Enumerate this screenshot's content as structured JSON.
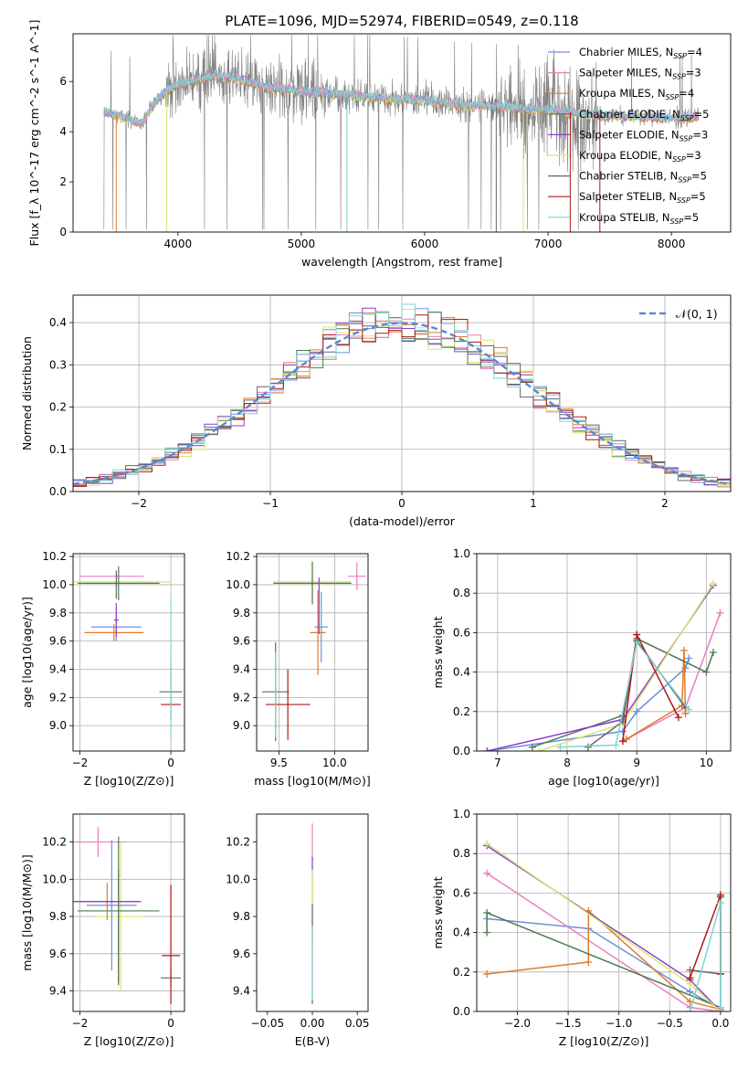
{
  "figure_title": "PLATE=1096, MJD=52974, FIBERID=0549, z=0.118",
  "colors": {
    "blue": "#6b8fdc",
    "pink": "#e87fbf",
    "orange": "#e07b2a",
    "darkgreen": "#4f7a4f",
    "purple": "#8e3cc9",
    "lime": "#d4ec6a",
    "gray": "#666666",
    "red": "#b01818",
    "cyan": "#7fd4d4",
    "fitline": "#5a86d8"
  },
  "chart_data": [
    {
      "id": "spectrum",
      "type": "line",
      "xlabel": "wavelength [Angstrom, rest frame]",
      "ylabel": "Flux [f_λ 10^-17 erg cm^-2 s^-1 A^-1]",
      "xlim": [
        3150,
        8480
      ],
      "ylim": [
        0,
        7.9
      ],
      "xticks": [
        4000,
        5000,
        6000,
        7000,
        8000
      ],
      "yticks": [
        0,
        2,
        4,
        6
      ],
      "legend_position": "right",
      "legend": [
        {
          "base": "Chabrier MILES, N",
          "sub": "SSP",
          "suffix": "=4",
          "color": "blue"
        },
        {
          "base": "Salpeter MILES, N",
          "sub": "SSP",
          "suffix": "=3",
          "color": "pink"
        },
        {
          "base": "Kroupa MILES, N",
          "sub": "SSP",
          "suffix": "=4",
          "color": "orange"
        },
        {
          "base": "Chabrier ELODIE, N",
          "sub": "SSP",
          "suffix": "=5",
          "color": "darkgreen"
        },
        {
          "base": "Salpeter ELODIE, N",
          "sub": "SSP",
          "suffix": "=3",
          "color": "purple"
        },
        {
          "base": "Kroupa ELODIE, N",
          "sub": "SSP",
          "suffix": "=3",
          "color": "lime"
        },
        {
          "base": "Chabrier STELIB, N",
          "sub": "SSP",
          "suffix": "=5",
          "color": "gray"
        },
        {
          "base": "Salpeter STELIB, N",
          "sub": "SSP",
          "suffix": "=5",
          "color": "red"
        },
        {
          "base": "Kroupa STELIB, N",
          "sub": "SSP",
          "suffix": "=5",
          "color": "cyan"
        }
      ],
      "model_continuum": {
        "x": [
          3400,
          3550,
          3700,
          3850,
          4000,
          4200,
          4300,
          4500,
          4700,
          5000,
          5300,
          5600,
          6000,
          6300,
          6600,
          7000,
          7300,
          7500,
          8000,
          8200
        ],
        "y": [
          4.8,
          4.6,
          4.3,
          5.4,
          5.9,
          6.1,
          6.25,
          6.1,
          5.8,
          5.6,
          5.5,
          5.35,
          5.25,
          5.05,
          5.0,
          4.9,
          4.7,
          4.65,
          4.55,
          4.6
        ]
      }
    },
    {
      "id": "residuals",
      "type": "step",
      "xlabel": "(data-model)/error",
      "ylabel": "Normed distribution",
      "xlim": [
        -2.5,
        2.5
      ],
      "ylim": [
        0,
        0.465
      ],
      "xticks": [
        -2,
        -1,
        0,
        1,
        2
      ],
      "yticks": [
        0.0,
        0.1,
        0.2,
        0.3,
        0.4
      ],
      "grid": true,
      "legend_label": "𝒩(0, 1)",
      "bins": {
        "start": -2.5,
        "width": 0.1,
        "count": 50
      }
    },
    {
      "id": "age_vs_Z",
      "type": "scatter",
      "xlabel": "Z [log10(Z/Z⊙)]",
      "ylabel": "age  [log10(age/yr)]",
      "xlim": [
        -2.15,
        0.3
      ],
      "ylim": [
        8.82,
        10.22
      ],
      "xticks": [
        -2,
        0
      ],
      "yticks": [
        9.0,
        9.2,
        9.4,
        9.6,
        9.8,
        10.0,
        10.2
      ],
      "grid": true,
      "points": [
        {
          "x": -1.3,
          "y": 10.06,
          "xerr": 0.7,
          "yerr": 0.0,
          "color": "pink"
        },
        {
          "x": -1.1,
          "y": 10.02,
          "xerr": 1.1,
          "yerr": 0.0,
          "color": "lime"
        },
        {
          "x": -1.15,
          "y": 10.01,
          "xerr": 0.9,
          "yerr": 0.12,
          "color": "darkgreen"
        },
        {
          "x": -1.2,
          "y": 9.7,
          "xerr": 0.55,
          "yerr": 0.1,
          "color": "blue"
        },
        {
          "x": -1.25,
          "y": 9.66,
          "xerr": 0.65,
          "yerr": 0.06,
          "color": "orange"
        },
        {
          "x": -1.2,
          "y": 9.75,
          "xerr": 0.05,
          "yerr": 0.12,
          "color": "purple"
        },
        {
          "x": 0.0,
          "y": 9.24,
          "xerr": 0.25,
          "yerr": 0.2,
          "color": "darkgreen"
        },
        {
          "x": 0.0,
          "y": 9.15,
          "xerr": 0.22,
          "yerr": 0.0,
          "color": "red"
        },
        {
          "x": 0.0,
          "y": 9.4,
          "xerr": 0.0,
          "yerr": 0.5,
          "color": "cyan"
        },
        {
          "x": -1.2,
          "y": 10.0,
          "xerr": 0.0,
          "yerr": 0.1,
          "color": "gray"
        }
      ]
    },
    {
      "id": "age_vs_mass",
      "type": "scatter",
      "xlabel": "mass [log10(M/M⊙)]",
      "ylabel": "",
      "xlim": [
        9.3,
        10.3
      ],
      "ylim": [
        8.82,
        10.22
      ],
      "xticks": [
        9.5,
        10.0
      ],
      "yticks": [
        9.0,
        9.2,
        9.4,
        9.6,
        9.8,
        10.0,
        10.2
      ],
      "grid": true,
      "points": [
        {
          "x": 10.2,
          "y": 10.06,
          "xerr": 0.08,
          "yerr": 0.1,
          "color": "pink"
        },
        {
          "x": 9.8,
          "y": 10.02,
          "xerr": 0.35,
          "yerr": 0.15,
          "color": "lime"
        },
        {
          "x": 9.8,
          "y": 10.01,
          "xerr": 0.35,
          "yerr": 0.15,
          "color": "darkgreen"
        },
        {
          "x": 9.88,
          "y": 9.7,
          "xerr": 0.06,
          "yerr": 0.25,
          "color": "blue"
        },
        {
          "x": 9.85,
          "y": 9.66,
          "xerr": 0.07,
          "yerr": 0.3,
          "color": "orange"
        },
        {
          "x": 9.86,
          "y": 9.85,
          "xerr": 0.0,
          "yerr": 0.2,
          "color": "purple"
        },
        {
          "x": 9.47,
          "y": 9.24,
          "xerr": 0.12,
          "yerr": 0.35,
          "color": "darkgreen"
        },
        {
          "x": 9.58,
          "y": 9.15,
          "xerr": 0.2,
          "yerr": 0.25,
          "color": "red"
        },
        {
          "x": 9.47,
          "y": 9.22,
          "xerr": 0.0,
          "yerr": 0.3,
          "color": "cyan"
        }
      ]
    },
    {
      "id": "weight_vs_age",
      "type": "line",
      "xlabel": "age  [log10(age/yr)]",
      "ylabel": "mass weight",
      "xlim": [
        6.7,
        10.35
      ],
      "ylim": [
        0,
        1.0
      ],
      "xticks": [
        7,
        8,
        9,
        10
      ],
      "yticks": [
        0.0,
        0.2,
        0.4,
        0.6,
        0.8,
        1.0
      ],
      "grid": true,
      "series": [
        {
          "color": "blue",
          "x": [
            6.85,
            8.8,
            9.0,
            9.7,
            9.75
          ],
          "y": [
            0.0,
            0.1,
            0.2,
            0.42,
            0.47
          ]
        },
        {
          "color": "pink",
          "x": [
            8.8,
            9.7,
            10.2
          ],
          "y": [
            0.05,
            0.22,
            0.7
          ]
        },
        {
          "color": "orange",
          "x": [
            8.85,
            9.65,
            9.68,
            9.7
          ],
          "y": [
            0.06,
            0.23,
            0.51,
            0.19
          ]
        },
        {
          "color": "darkgreen",
          "x": [
            7.5,
            8.8,
            9.0,
            10.0,
            10.1
          ],
          "y": [
            0.02,
            0.18,
            0.57,
            0.4,
            0.5
          ]
        },
        {
          "color": "purple",
          "x": [
            6.85,
            8.8,
            10.1
          ],
          "y": [
            0.0,
            0.16,
            0.84
          ]
        },
        {
          "color": "lime",
          "x": [
            7.6,
            8.8,
            10.1
          ],
          "y": [
            0.0,
            0.14,
            0.85
          ]
        },
        {
          "color": "gray",
          "x": [
            8.3,
            8.8,
            9.0,
            9.7
          ],
          "y": [
            0.02,
            0.15,
            0.56,
            0.22
          ]
        },
        {
          "color": "red",
          "x": [
            8.8,
            9.0,
            9.6
          ],
          "y": [
            0.05,
            0.59,
            0.17
          ]
        },
        {
          "color": "cyan",
          "x": [
            7.9,
            8.7,
            9.0,
            9.75
          ],
          "y": [
            0.02,
            0.03,
            0.55,
            0.21
          ]
        }
      ]
    },
    {
      "id": "mass_vs_Z",
      "type": "scatter",
      "xlabel": "Z [log10(Z/Z⊙)]",
      "ylabel": "mass [log10(M/M⊙)]",
      "xlim": [
        -2.15,
        0.3
      ],
      "ylim": [
        9.29,
        10.35
      ],
      "xticks": [
        -2,
        0
      ],
      "yticks": [
        9.4,
        9.6,
        9.8,
        10.0,
        10.2
      ],
      "grid": true,
      "points": [
        {
          "x": -1.6,
          "y": 10.2,
          "xerr": 0.6,
          "yerr": 0.08,
          "color": "pink"
        },
        {
          "x": -1.1,
          "y": 9.8,
          "xerr": 0.55,
          "yerr": 0.4,
          "color": "lime"
        },
        {
          "x": -1.15,
          "y": 9.83,
          "xerr": 0.9,
          "yerr": 0.4,
          "color": "darkgreen"
        },
        {
          "x": -1.3,
          "y": 9.86,
          "xerr": 0.55,
          "yerr": 0.35,
          "color": "blue"
        },
        {
          "x": -1.4,
          "y": 9.88,
          "xerr": 0.7,
          "yerr": 0.1,
          "color": "orange"
        },
        {
          "x": -1.4,
          "y": 9.88,
          "xerr": 0.75,
          "yerr": 0.0,
          "color": "purple"
        },
        {
          "x": 0.0,
          "y": 9.59,
          "xerr": 0.2,
          "yerr": 0.0,
          "color": "red"
        },
        {
          "x": 0.0,
          "y": 9.47,
          "xerr": 0.22,
          "yerr": 0.05,
          "color": "darkgreen"
        },
        {
          "x": 0.0,
          "y": 9.65,
          "xerr": 0.0,
          "yerr": 0.32,
          "color": "red"
        },
        {
          "x": -1.15,
          "y": 9.75,
          "xerr": 0.0,
          "yerr": 0.3,
          "color": "gray"
        }
      ]
    },
    {
      "id": "mass_vs_ebv",
      "type": "scatter",
      "xlabel": "E(B-V)",
      "ylabel": "",
      "xlim": [
        -0.062,
        0.062
      ],
      "ylim": [
        9.29,
        10.35
      ],
      "xticks": [
        -0.05,
        0.0,
        0.05
      ],
      "xticklabels": [
        "−0.05",
        "0.00",
        "0.05"
      ],
      "yticks": [
        9.4,
        9.6,
        9.8,
        10.0,
        10.2
      ],
      "grid": false,
      "points": [
        {
          "x": 0.0,
          "y": 10.2,
          "xerr": 0.0,
          "yerr": 0.1,
          "color": "pink"
        },
        {
          "x": 0.0,
          "y": 10.0,
          "xerr": 0.0,
          "yerr": 0.12,
          "color": "purple"
        },
        {
          "x": 0.0,
          "y": 9.85,
          "xerr": 0.0,
          "yerr": 0.2,
          "color": "lime"
        },
        {
          "x": 0.0,
          "y": 9.6,
          "xerr": 0.0,
          "yerr": 0.27,
          "color": "gray"
        },
        {
          "x": 0.0,
          "y": 9.55,
          "xerr": 0.0,
          "yerr": 0.2,
          "color": "cyan"
        }
      ]
    },
    {
      "id": "weight_vs_Z",
      "type": "line",
      "xlabel": "Z [log10(Z/Z⊙)]",
      "ylabel": "mass weight",
      "xlim": [
        -2.4,
        0.1
      ],
      "ylim": [
        0,
        1.0
      ],
      "xticks": [
        -2.0,
        -1.5,
        -1.0,
        -0.5,
        0.0
      ],
      "xticklabels": [
        "−2.0",
        "−1.5",
        "−1.0",
        "−0.5",
        "0.0"
      ],
      "yticks": [
        0.0,
        0.2,
        0.4,
        0.6,
        0.8,
        1.0
      ],
      "grid": true,
      "series": [
        {
          "color": "blue",
          "x": [
            -2.3,
            -1.3,
            -0.3,
            0.0
          ],
          "y": [
            0.47,
            0.42,
            0.1,
            0.01
          ]
        },
        {
          "color": "pink",
          "x": [
            -2.3,
            -0.3,
            0.0
          ],
          "y": [
            0.7,
            0.02,
            0.0
          ]
        },
        {
          "color": "orange",
          "x": [
            -2.3,
            -1.3,
            -1.3,
            -0.3,
            0.0
          ],
          "y": [
            0.19,
            0.25,
            0.51,
            0.05,
            0.01
          ]
        },
        {
          "color": "darkgreen",
          "x": [
            -2.3,
            -2.3,
            0.0,
            0.0
          ],
          "y": [
            0.4,
            0.5,
            0.02,
            0.58
          ]
        },
        {
          "color": "purple",
          "x": [
            -2.3,
            -0.3,
            0.0
          ],
          "y": [
            0.84,
            0.16,
            0.0
          ]
        },
        {
          "color": "lime",
          "x": [
            -2.3,
            -0.3,
            0.0
          ],
          "y": [
            0.85,
            0.14,
            0.0
          ]
        },
        {
          "color": "gray",
          "x": [
            -0.3,
            0.0,
            0.0
          ],
          "y": [
            0.21,
            0.19,
            0.58
          ]
        },
        {
          "color": "red",
          "x": [
            -0.3,
            0.0,
            0.0
          ],
          "y": [
            0.17,
            0.59,
            0.19
          ]
        },
        {
          "color": "cyan",
          "x": [
            -0.3,
            0.0,
            0.0
          ],
          "y": [
            0.0,
            0.55,
            0.02
          ]
        }
      ]
    }
  ]
}
